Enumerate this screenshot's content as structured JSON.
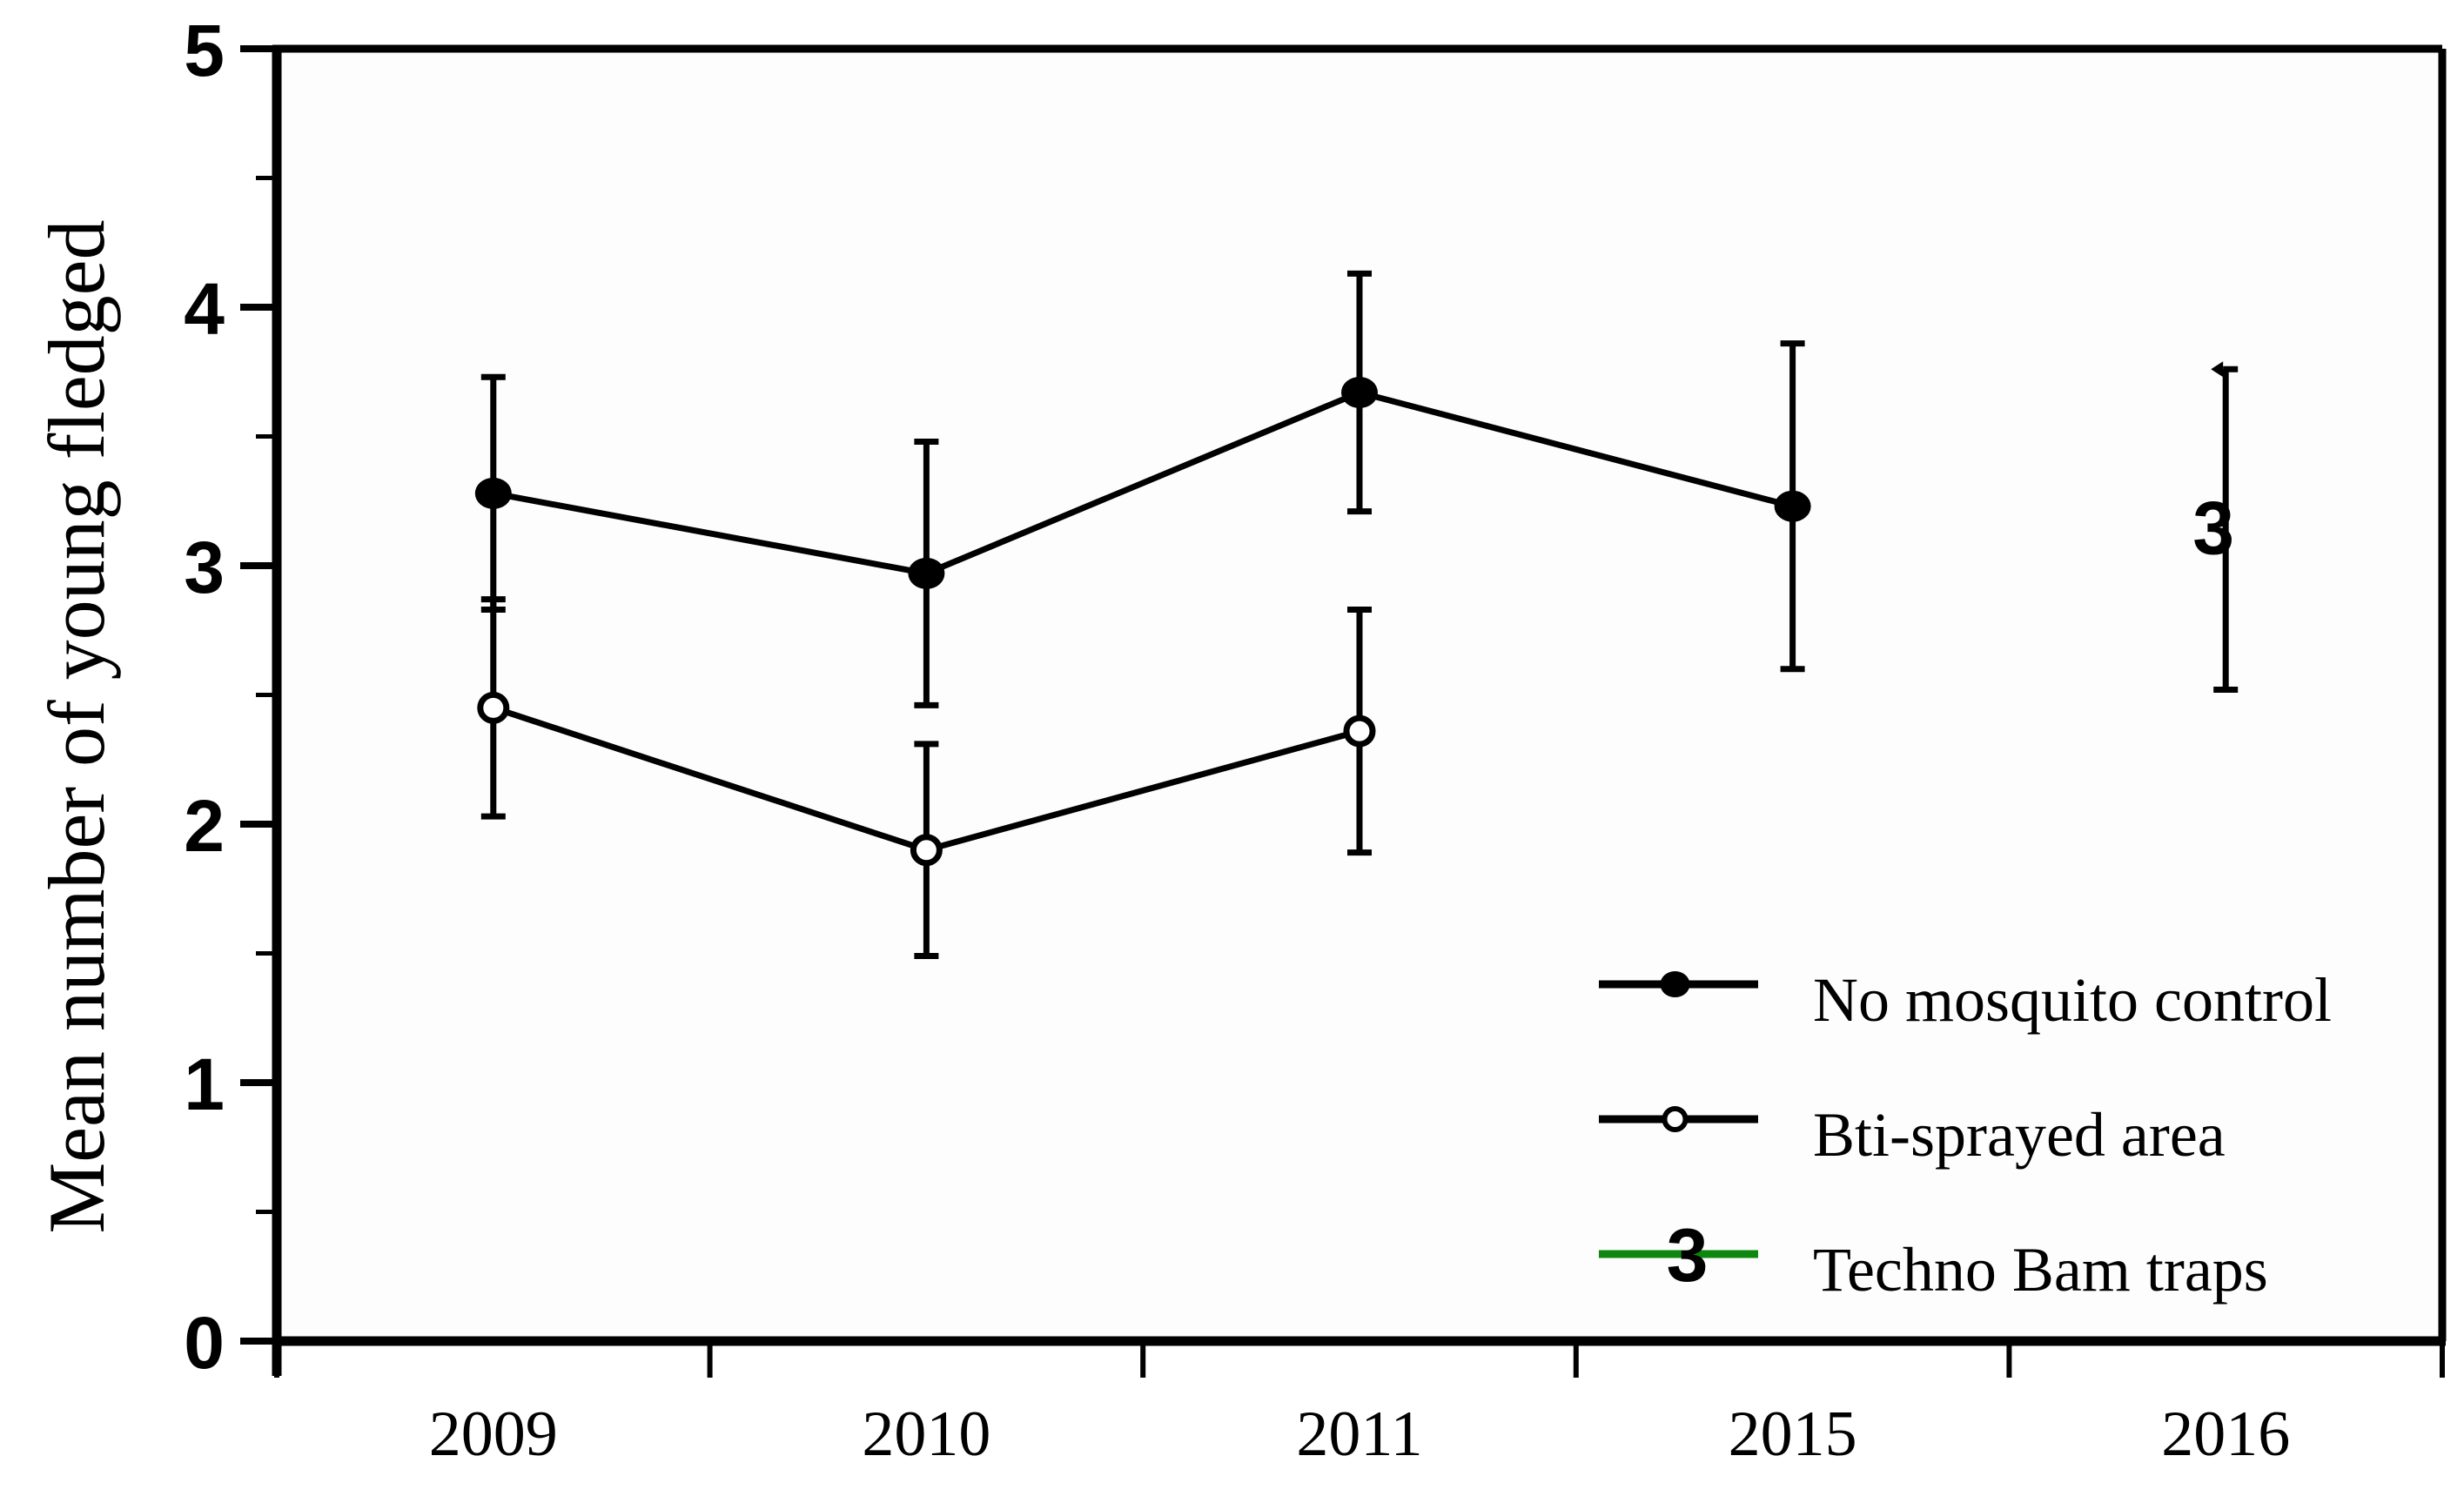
{
  "figure": {
    "background": "#ffffff",
    "plot_background": "#fdfdfd",
    "axis_color": "#000000",
    "techno_legend_line_color": "#0e870e"
  },
  "chart_data": {
    "type": "line",
    "title": "",
    "xlabel": "",
    "ylabel": "Mean number of young fledged",
    "categories": [
      "2009",
      "2010",
      "2011",
      "2015",
      "2016"
    ],
    "y_ticks": [
      "0",
      "1",
      "2",
      "3",
      "4",
      "5"
    ],
    "ylim": [
      0,
      5
    ],
    "minor_tick_step": 0.5,
    "grid": "off",
    "legend_position": "inside lower right",
    "series": [
      {
        "name": "No mosquito control",
        "marker": "filled-circle",
        "color": "#000000",
        "connected": true,
        "points": [
          {
            "x": "2009",
            "y": 3.28,
            "lo": 2.83,
            "hi": 3.73
          },
          {
            "x": "2010",
            "y": 2.97,
            "lo": 2.46,
            "hi": 3.48
          },
          {
            "x": "2011",
            "y": 3.67,
            "lo": 3.21,
            "hi": 4.13
          },
          {
            "x": "2015",
            "y": 3.23,
            "lo": 2.6,
            "hi": 3.86
          }
        ]
      },
      {
        "name": "Bti-sprayed area",
        "marker": "open-circle",
        "color": "#000000",
        "connected": true,
        "points": [
          {
            "x": "2009",
            "y": 2.45,
            "lo": 2.03,
            "hi": 2.87
          },
          {
            "x": "2010",
            "y": 1.9,
            "lo": 1.49,
            "hi": 2.31
          },
          {
            "x": "2011",
            "y": 2.36,
            "lo": 1.89,
            "hi": 2.83
          }
        ]
      },
      {
        "name": "Techno Bam traps",
        "marker": "numeral-3",
        "color": "#000000",
        "legend_line_color": "#0e870e",
        "connected": false,
        "points": [
          {
            "x": "2016",
            "y": 3.15,
            "lo": 2.52,
            "hi": 3.76,
            "arrow_top": true
          }
        ]
      }
    ]
  }
}
